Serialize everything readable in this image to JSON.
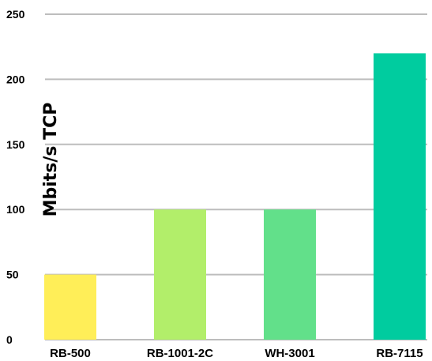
{
  "chart_data": {
    "type": "bar",
    "categories": [
      "RB-500",
      "RB-1001-2C",
      "WH-3001",
      "RB-7115"
    ],
    "values": [
      50,
      100,
      100,
      220
    ],
    "colors": [
      "#ffee58",
      "#b2ee6a",
      "#62e08a",
      "#00cc9f"
    ],
    "title": "",
    "xlabel": "",
    "ylabel": "Mbits/s TCP",
    "ylim": [
      0,
      250
    ],
    "yticks": [
      0,
      50,
      100,
      150,
      200,
      250
    ],
    "grid": true
  }
}
